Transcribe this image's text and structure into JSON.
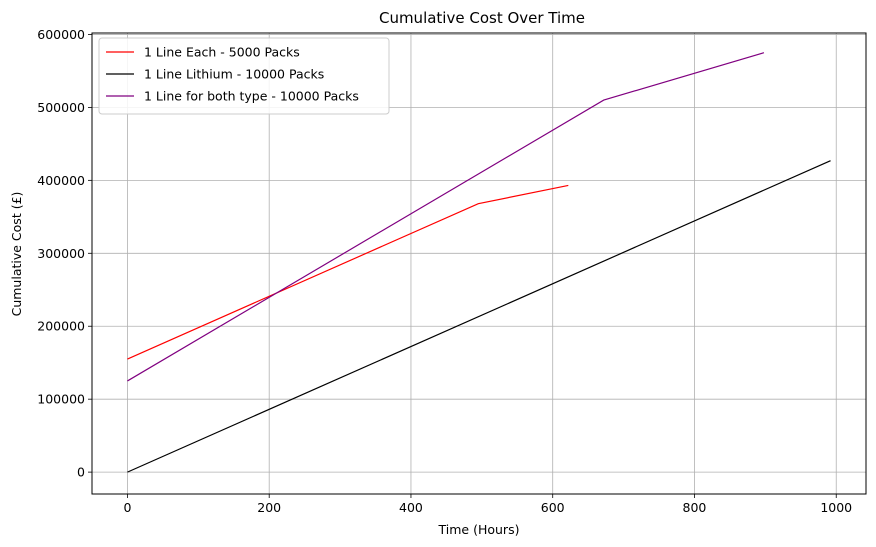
{
  "chart_data": {
    "type": "line",
    "title": "Cumulative Cost Over Time",
    "xlabel": "Time (Hours)",
    "ylabel": "Cumulative Cost (£)",
    "xlim": [
      -50,
      1042
    ],
    "ylim": [
      -30000,
      602000
    ],
    "xticks": [
      0,
      200,
      400,
      600,
      800,
      1000
    ],
    "yticks": [
      0,
      100000,
      200000,
      300000,
      400000,
      500000,
      600000
    ],
    "grid": true,
    "legend_position": "top-left",
    "series": [
      {
        "name": "1 Line Each - 5000 Packs",
        "color": "#ff0000",
        "points": [
          [
            0,
            155000
          ],
          [
            495,
            368000
          ],
          [
            622,
            393000
          ]
        ]
      },
      {
        "name": "1 Line Lithium - 10000 Packs",
        "color": "#000000",
        "points": [
          [
            0,
            0
          ],
          [
            992,
            427000
          ]
        ]
      },
      {
        "name": "1 Line for both type - 10000 Packs",
        "color": "#800080",
        "points": [
          [
            0,
            125000
          ],
          [
            672,
            510000
          ],
          [
            898,
            575000
          ]
        ]
      }
    ]
  }
}
